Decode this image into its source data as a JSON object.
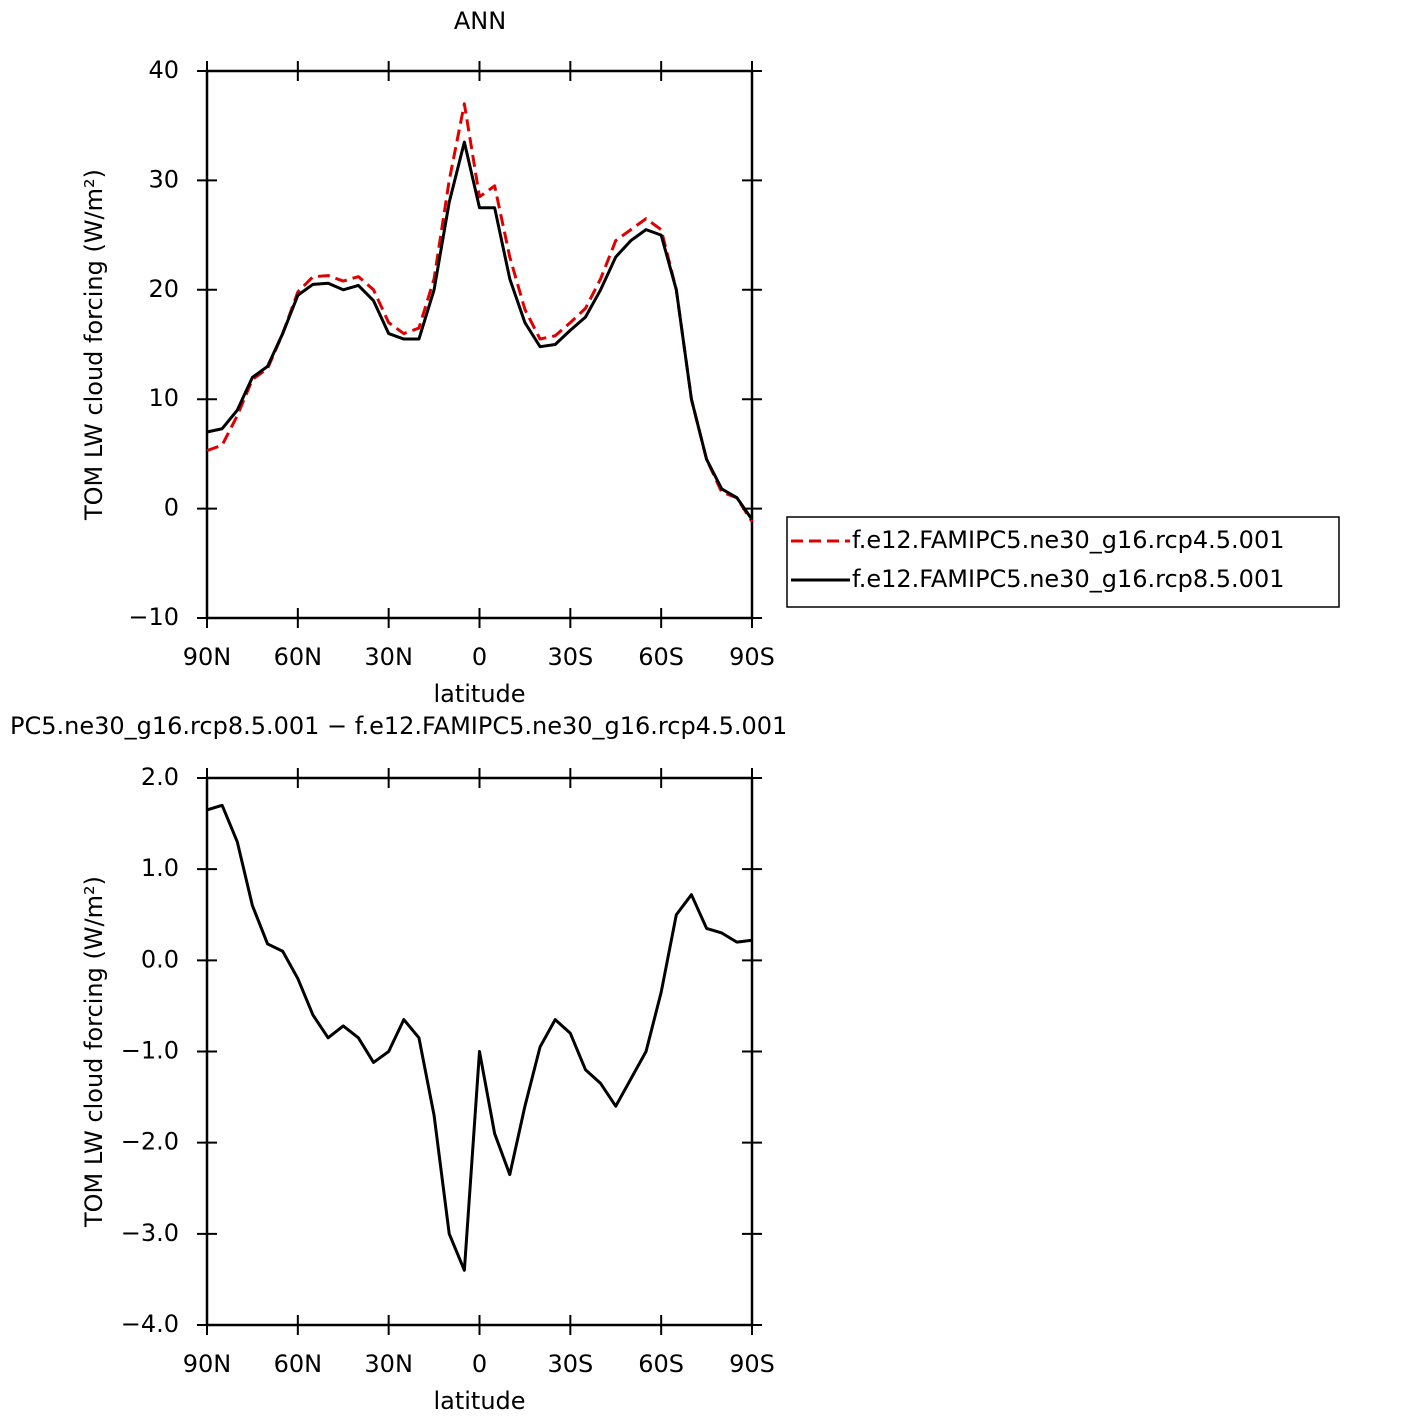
{
  "chart_data": [
    {
      "type": "line",
      "title": "ANN",
      "y_label": "TOM LW cloud forcing (W/m²)",
      "x_label": "latitude",
      "x": [
        90,
        85,
        80,
        75,
        70,
        65,
        60,
        55,
        50,
        45,
        40,
        35,
        30,
        25,
        20,
        15,
        10,
        5,
        0,
        -5,
        -10,
        -15,
        -20,
        -25,
        -30,
        -35,
        -40,
        -45,
        -50,
        -55,
        -60,
        -65,
        -70,
        -75,
        -80,
        -85,
        -90
      ],
      "xlim": [
        90,
        -90
      ],
      "xticks": [
        {
          "value": 90,
          "label": "90N"
        },
        {
          "value": 60,
          "label": "60N"
        },
        {
          "value": 30,
          "label": "30N"
        },
        0,
        {
          "value": -30,
          "label": "30S"
        },
        {
          "value": -60,
          "label": "60S"
        },
        {
          "value": -90,
          "label": "90S"
        }
      ],
      "ylim": [
        -10,
        40
      ],
      "yticks": [
        {
          "value": -10,
          "label": "−10"
        },
        0,
        10,
        20,
        30,
        40
      ],
      "series": [
        {
          "name": "f.e12.FAMIPC5.ne30_g16.rcp4.5.001",
          "color": "#e00000",
          "linestyle": "dashed",
          "values": [
            5.3,
            5.8,
            8.5,
            11.8,
            12.8,
            16.0,
            19.8,
            21.2,
            21.3,
            20.8,
            21.2,
            20.0,
            17.0,
            16.0,
            16.5,
            21.0,
            30.0,
            37.0,
            28.5,
            29.5,
            23.0,
            18.2,
            15.5,
            15.8,
            17.0,
            18.3,
            21.0,
            24.5,
            25.5,
            26.5,
            25.5,
            20.0,
            10.0,
            4.5,
            1.5,
            1.0,
            -1.2
          ]
        },
        {
          "name": "f.e12.FAMIPC5.ne30_g16.rcp8.5.001",
          "color": "#000000",
          "linestyle": "solid",
          "values": [
            7.0,
            7.3,
            9.0,
            12.0,
            13.0,
            16.0,
            19.5,
            20.5,
            20.6,
            20.0,
            20.4,
            19.0,
            16.0,
            15.5,
            15.5,
            20.0,
            28.0,
            33.5,
            27.5,
            27.5,
            21.0,
            17.0,
            14.8,
            15.0,
            16.3,
            17.5,
            20.0,
            23.0,
            24.5,
            25.5,
            25.0,
            20.0,
            10.0,
            4.5,
            1.8,
            1.0,
            -1.0
          ]
        }
      ]
    },
    {
      "type": "line",
      "title": "PC5.ne30_g16.rcp8.5.001 − f.e12.FAMIPC5.ne30_g16.rcp4.5.001",
      "y_label": "TOM LW cloud forcing (W/m²)",
      "x_label": "latitude",
      "x": [
        90,
        85,
        80,
        75,
        70,
        65,
        60,
        55,
        50,
        45,
        40,
        35,
        30,
        25,
        20,
        15,
        10,
        5,
        0,
        -5,
        -10,
        -15,
        -20,
        -25,
        -30,
        -35,
        -40,
        -45,
        -50,
        -55,
        -60,
        -65,
        -70,
        -75,
        -80,
        -85,
        -90
      ],
      "xlim": [
        90,
        -90
      ],
      "xticks": [
        {
          "value": 90,
          "label": "90N"
        },
        {
          "value": 60,
          "label": "60N"
        },
        {
          "value": 30,
          "label": "30N"
        },
        0,
        {
          "value": -30,
          "label": "30S"
        },
        {
          "value": -60,
          "label": "60S"
        },
        {
          "value": -90,
          "label": "90S"
        }
      ],
      "ylim": [
        -4,
        2
      ],
      "yticks": [
        {
          "value": -4,
          "label": "−4.0"
        },
        {
          "value": -3,
          "label": "−3.0"
        },
        {
          "value": -2,
          "label": "−2.0"
        },
        {
          "value": -1,
          "label": "−1.0"
        },
        {
          "value": 0,
          "label": "0.0"
        },
        {
          "value": 1,
          "label": "1.0"
        },
        {
          "value": 2,
          "label": "2.0"
        }
      ],
      "series": [
        {
          "color": "#000000",
          "linestyle": "solid",
          "values": [
            1.65,
            1.7,
            1.3,
            0.6,
            0.18,
            0.1,
            -0.2,
            -0.6,
            -0.85,
            -0.72,
            -0.85,
            -1.12,
            -1.0,
            -0.65,
            -0.85,
            -1.7,
            -3.0,
            -3.4,
            -1.0,
            -1.9,
            -2.35,
            -1.6,
            -0.95,
            -0.65,
            -0.8,
            -1.2,
            -1.35,
            -1.6,
            -1.3,
            -1.0,
            -0.35,
            0.5,
            0.72,
            0.35,
            0.3,
            0.2,
            0.22
          ]
        }
      ]
    }
  ]
}
